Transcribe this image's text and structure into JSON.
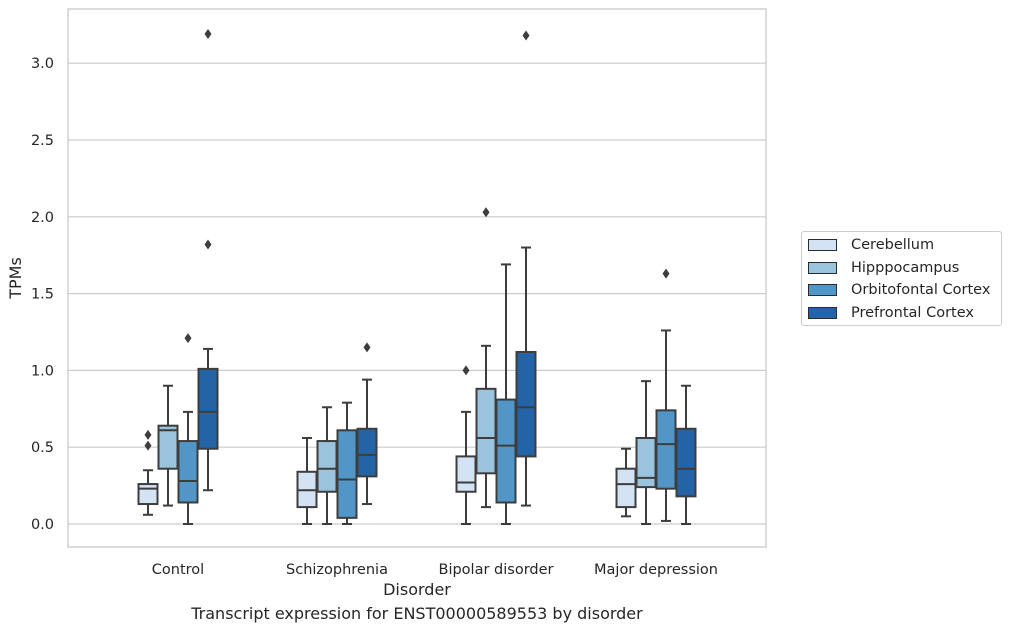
{
  "chart_data": {
    "type": "box",
    "xlabel": "Disorder",
    "ylabel": "TPMs",
    "caption": "Transcript expression for ENST00000589553 by disorder",
    "ylim": [
      -0.15,
      3.35
    ],
    "yticks": [
      "0.0",
      "0.5",
      "1.0",
      "1.5",
      "2.0",
      "2.5",
      "3.0"
    ],
    "grid": "horizontal",
    "legend_position": "right",
    "categories": [
      "Control",
      "Schizophrenia",
      "Bipolar disorder",
      "Major depression"
    ],
    "series": [
      {
        "name": "Cerebellum",
        "color": "#d4e3f3",
        "boxes": [
          {
            "whislo": 0.06,
            "q1": 0.13,
            "med": 0.23,
            "q3": 0.26,
            "whishi": 0.35,
            "fliers": [
              0.51,
              0.58
            ]
          },
          {
            "whislo": 0.0,
            "q1": 0.11,
            "med": 0.22,
            "q3": 0.34,
            "whishi": 0.56,
            "fliers": []
          },
          {
            "whislo": 0.0,
            "q1": 0.21,
            "med": 0.27,
            "q3": 0.44,
            "whishi": 0.73,
            "fliers": [
              1.0
            ]
          },
          {
            "whislo": 0.05,
            "q1": 0.11,
            "med": 0.26,
            "q3": 0.36,
            "whishi": 0.49,
            "fliers": []
          }
        ]
      },
      {
        "name": "Hipppocampus",
        "color": "#9ac4de",
        "boxes": [
          {
            "whislo": 0.12,
            "q1": 0.36,
            "med": 0.61,
            "q3": 0.64,
            "whishi": 0.9,
            "fliers": []
          },
          {
            "whislo": 0.0,
            "q1": 0.21,
            "med": 0.36,
            "q3": 0.54,
            "whishi": 0.76,
            "fliers": []
          },
          {
            "whislo": 0.11,
            "q1": 0.33,
            "med": 0.56,
            "q3": 0.88,
            "whishi": 1.16,
            "fliers": [
              2.03
            ]
          },
          {
            "whislo": 0.0,
            "q1": 0.24,
            "med": 0.3,
            "q3": 0.56,
            "whishi": 0.93,
            "fliers": []
          }
        ]
      },
      {
        "name": "Orbitofontal Cortex",
        "color": "#5296c8",
        "boxes": [
          {
            "whislo": 0.0,
            "q1": 0.14,
            "med": 0.28,
            "q3": 0.54,
            "whishi": 0.73,
            "fliers": [
              1.21
            ]
          },
          {
            "whislo": 0.0,
            "q1": 0.04,
            "med": 0.29,
            "q3": 0.61,
            "whishi": 0.79,
            "fliers": []
          },
          {
            "whislo": 0.0,
            "q1": 0.14,
            "med": 0.51,
            "q3": 0.81,
            "whishi": 1.69,
            "fliers": []
          },
          {
            "whislo": 0.02,
            "q1": 0.23,
            "med": 0.52,
            "q3": 0.74,
            "whishi": 1.26,
            "fliers": [
              1.63
            ]
          }
        ]
      },
      {
        "name": "Prefrontal Cortex",
        "color": "#2464a6",
        "boxes": [
          {
            "whislo": 0.22,
            "q1": 0.49,
            "med": 0.73,
            "q3": 1.01,
            "whishi": 1.14,
            "fliers": [
              1.82,
              3.19
            ]
          },
          {
            "whislo": 0.13,
            "q1": 0.31,
            "med": 0.45,
            "q3": 0.62,
            "whishi": 0.94,
            "fliers": [
              1.15
            ]
          },
          {
            "whislo": 0.12,
            "q1": 0.44,
            "med": 0.76,
            "q3": 1.12,
            "whishi": 1.8,
            "fliers": [
              3.18
            ]
          },
          {
            "whislo": 0.0,
            "q1": 0.18,
            "med": 0.36,
            "q3": 0.62,
            "whishi": 0.9,
            "fliers": []
          }
        ]
      }
    ]
  }
}
